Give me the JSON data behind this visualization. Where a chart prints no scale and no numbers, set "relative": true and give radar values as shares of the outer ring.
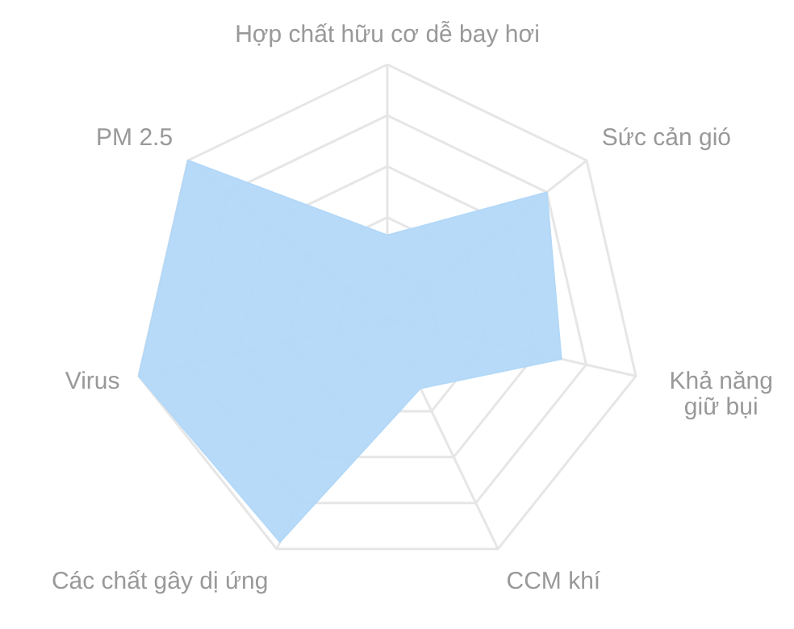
{
  "chart_data": {
    "type": "radar",
    "relative": true,
    "grid": true,
    "categories": [
      "Hợp chất hữu cơ dễ bay hơi",
      "Sức cản gió",
      "Khả năng giữ bụi",
      "CCM khí",
      "Các chất gây dị ứng",
      "Virus",
      "PM 2.5"
    ],
    "series": [
      {
        "color": "#b3d8f8",
        "values": [
          0.33,
          0.8,
          0.7,
          0.3,
          0.97,
          1,
          1
        ]
      }
    ]
  }
}
